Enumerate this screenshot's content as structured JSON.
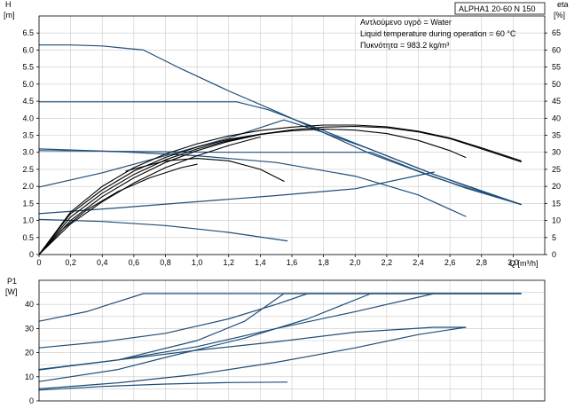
{
  "title_box": "ALPHA1 20-60 N 150",
  "annotations": [
    "Αντλούμενο υγρό = Water",
    "Liquid temperature during operation = 60 °C",
    "Πυκνότητα = 983.2 kg/m³"
  ],
  "colors": {
    "curve": "#1f4e79",
    "efficiency": "#000000",
    "grid": "#c8c8c8"
  },
  "chart_data": [
    {
      "type": "line",
      "name": "head",
      "xlabel": "Q [m³/h]",
      "ylabel": "H [m]",
      "ylabel_right": "eta [%]",
      "xlim": [
        0,
        3.2
      ],
      "ylim": [
        0,
        7
      ],
      "ylim_right": [
        0,
        70
      ],
      "xticks": [
        "0",
        "0,2",
        "0,4",
        "0,6",
        "0,8",
        "1,0",
        "1,2",
        "1,4",
        "1,6",
        "1,8",
        "2,0",
        "2,2",
        "2,4",
        "2,6",
        "2,8",
        "3,0"
      ],
      "yticks": [
        "0",
        "0.5",
        "1.0",
        "1.5",
        "2.0",
        "2.5",
        "3.0",
        "3.5",
        "4.0",
        "4.5",
        "5.0",
        "5.5",
        "6.0",
        "6.5"
      ],
      "yticks_right": [
        "0",
        "5",
        "10",
        "15",
        "20",
        "25",
        "30",
        "35",
        "40",
        "45",
        "50",
        "55",
        "60",
        "65"
      ],
      "grid": true,
      "series": [
        {
          "role": "head",
          "points": [
            [
              0,
              6.15
            ],
            [
              0.2,
              6.15
            ],
            [
              0.4,
              6.12
            ],
            [
              0.66,
              6.0
            ],
            [
              0.9,
              5.45
            ],
            [
              1.2,
              4.8
            ],
            [
              1.5,
              4.2
            ],
            [
              1.8,
              3.58
            ],
            [
              2.1,
              2.95
            ],
            [
              2.5,
              2.27
            ],
            [
              2.8,
              1.82
            ],
            [
              3.05,
              1.47
            ]
          ]
        },
        {
          "role": "head",
          "points": [
            [
              0,
              4.48
            ],
            [
              1.25,
              4.48
            ],
            [
              1.45,
              4.25
            ],
            [
              1.75,
              3.73
            ],
            [
              2.1,
              3.08
            ],
            [
              2.5,
              2.35
            ],
            [
              2.8,
              1.85
            ],
            [
              3.05,
              1.47
            ]
          ]
        },
        {
          "role": "head",
          "points": [
            [
              0,
              3.05
            ],
            [
              1.2,
              3.0
            ],
            [
              1.8,
              3.0
            ],
            [
              2.1,
              3.0
            ],
            [
              2.4,
              2.45
            ],
            [
              2.7,
              1.95
            ],
            [
              3.05,
              1.47
            ]
          ]
        },
        {
          "role": "head",
          "points": [
            [
              0,
              1.98
            ],
            [
              0.4,
              2.4
            ],
            [
              0.8,
              2.9
            ],
            [
              1.2,
              3.42
            ],
            [
              1.55,
              3.95
            ],
            [
              1.8,
              3.58
            ],
            [
              2.1,
              3.08
            ],
            [
              2.5,
              2.35
            ],
            [
              3.05,
              1.47
            ]
          ]
        },
        {
          "role": "head",
          "points": [
            [
              0,
              3.1
            ],
            [
              0.5,
              3.02
            ],
            [
              1.0,
              2.9
            ],
            [
              1.5,
              2.7
            ],
            [
              2.0,
              2.3
            ],
            [
              2.4,
              1.75
            ],
            [
              2.7,
              1.12
            ]
          ]
        },
        {
          "role": "head",
          "points": [
            [
              0,
              1.2
            ],
            [
              0.5,
              1.37
            ],
            [
              1.0,
              1.55
            ],
            [
              1.5,
              1.73
            ],
            [
              2.0,
              1.93
            ],
            [
              2.5,
              2.42
            ]
          ]
        },
        {
          "role": "head",
          "points": [
            [
              0,
              1.03
            ],
            [
              0.4,
              0.97
            ],
            [
              0.8,
              0.85
            ],
            [
              1.2,
              0.65
            ],
            [
              1.57,
              0.4
            ]
          ]
        },
        {
          "role": "efficiency",
          "points": [
            [
              0,
              0
            ],
            [
              0.2,
              12
            ],
            [
              0.4,
              19
            ],
            [
              0.6,
              24.5
            ],
            [
              0.8,
              28.5
            ],
            [
              1.0,
              31.5
            ],
            [
              1.2,
              33.8
            ],
            [
              1.4,
              35.3
            ],
            [
              1.6,
              36.3
            ],
            [
              1.8,
              36.8
            ],
            [
              2.0,
              36.5
            ],
            [
              2.2,
              35.5
            ],
            [
              2.4,
              33.5
            ],
            [
              2.6,
              30.5
            ],
            [
              2.7,
              28.5
            ]
          ]
        },
        {
          "role": "efficiency",
          "points": [
            [
              0,
              0
            ],
            [
              0.2,
              11
            ],
            [
              0.4,
              18
            ],
            [
              0.6,
              23.5
            ],
            [
              0.8,
              27.8
            ],
            [
              1.0,
              31
            ],
            [
              1.2,
              33.5
            ],
            [
              1.4,
              35.3
            ],
            [
              1.6,
              36.6
            ],
            [
              1.8,
              37.4
            ],
            [
              2.0,
              37.6
            ],
            [
              2.2,
              37.2
            ],
            [
              2.4,
              36
            ],
            [
              2.6,
              34
            ],
            [
              2.8,
              31
            ],
            [
              3.05,
              27.2
            ]
          ]
        },
        {
          "role": "efficiency",
          "points": [
            [
              0,
              0
            ],
            [
              0.2,
              12.5
            ],
            [
              0.4,
              20
            ],
            [
              0.6,
              25.5
            ],
            [
              0.8,
              29.5
            ],
            [
              1.0,
              32.5
            ],
            [
              1.2,
              34.8
            ],
            [
              1.4,
              36.4
            ],
            [
              1.6,
              37.4
            ],
            [
              1.8,
              38
            ],
            [
              2.0,
              38
            ],
            [
              2.2,
              37.5
            ],
            [
              2.4,
              36.2
            ],
            [
              2.6,
              34.2
            ],
            [
              2.8,
              31.3
            ],
            [
              3.05,
              27.5
            ]
          ]
        },
        {
          "role": "efficiency",
          "points": [
            [
              0,
              0
            ],
            [
              0.2,
              10
            ],
            [
              0.4,
              17
            ],
            [
              0.6,
              22.5
            ],
            [
              0.8,
              27
            ],
            [
              1.0,
              30.5
            ],
            [
              1.2,
              33.2
            ],
            [
              1.4,
              35.2
            ],
            [
              1.6,
              36.5
            ]
          ]
        },
        {
          "role": "efficiency",
          "points": [
            [
              0,
              0
            ],
            [
              0.15,
              7.5
            ],
            [
              0.3,
              13
            ],
            [
              0.5,
              18.5
            ],
            [
              0.7,
              22.5
            ],
            [
              0.9,
              25.5
            ],
            [
              1.0,
              26.5
            ]
          ]
        },
        {
          "role": "efficiency",
          "points": [
            [
              0.55,
              24.5
            ],
            [
              0.8,
              27.5
            ],
            [
              1.0,
              28.2
            ],
            [
              1.2,
              27.5
            ],
            [
              1.4,
              25
            ],
            [
              1.55,
              21.5
            ]
          ]
        },
        {
          "role": "efficiency",
          "points": [
            [
              0,
              0
            ],
            [
              0.2,
              9
            ],
            [
              0.4,
              15.5
            ],
            [
              0.6,
              21
            ],
            [
              0.8,
              25.5
            ],
            [
              1.0,
              29
            ],
            [
              1.2,
              32
            ],
            [
              1.4,
              34.5
            ]
          ]
        }
      ]
    },
    {
      "type": "line",
      "name": "power",
      "ylabel": "P1 [W]",
      "xlim": [
        0,
        3.2
      ],
      "ylim": [
        0,
        50
      ],
      "yticks": [
        "0",
        "10",
        "20",
        "30",
        "40"
      ],
      "grid": true,
      "series": [
        {
          "points": [
            [
              0,
              33
            ],
            [
              0.3,
              37
            ],
            [
              0.66,
              44.5
            ],
            [
              3.05,
              44.5
            ]
          ]
        },
        {
          "points": [
            [
              0,
              22
            ],
            [
              0.4,
              24.5
            ],
            [
              0.8,
              28
            ],
            [
              1.2,
              34
            ],
            [
              1.5,
              40
            ],
            [
              1.7,
              44.5
            ],
            [
              3.05,
              44.5
            ]
          ]
        },
        {
          "points": [
            [
              0,
              13
            ],
            [
              0.5,
              17
            ],
            [
              1.0,
              25
            ],
            [
              1.3,
              33
            ],
            [
              1.55,
              44.5
            ],
            [
              3.05,
              44.5
            ]
          ]
        },
        {
          "points": [
            [
              0,
              8
            ],
            [
              0.5,
              13
            ],
            [
              0.8,
              18
            ],
            [
              1.3,
              26
            ],
            [
              1.7,
              34
            ],
            [
              2.1,
              44.5
            ],
            [
              3.05,
              44.5
            ]
          ]
        },
        {
          "points": [
            [
              0,
              12.8
            ],
            [
              0.5,
              17
            ],
            [
              1.0,
              22.5
            ],
            [
              1.5,
              30
            ],
            [
              2.0,
              37
            ],
            [
              2.5,
              44.5
            ],
            [
              3.05,
              44.5
            ]
          ]
        },
        {
          "points": [
            [
              0,
              5
            ],
            [
              0.5,
              7.5
            ],
            [
              1.0,
              11
            ],
            [
              1.5,
              16
            ],
            [
              2.0,
              22
            ],
            [
              2.4,
              27.5
            ],
            [
              2.7,
              30.5
            ]
          ]
        },
        {
          "points": [
            [
              0,
              13
            ],
            [
              0.5,
              17
            ],
            [
              1.0,
              21
            ],
            [
              1.5,
              24.5
            ],
            [
              2.0,
              28.5
            ],
            [
              2.5,
              30.5
            ],
            [
              2.7,
              30.5
            ]
          ]
        },
        {
          "points": [
            [
              0,
              4.5
            ],
            [
              0.4,
              6
            ],
            [
              0.8,
              7
            ],
            [
              1.2,
              7.6
            ],
            [
              1.57,
              7.8
            ]
          ]
        }
      ]
    }
  ]
}
